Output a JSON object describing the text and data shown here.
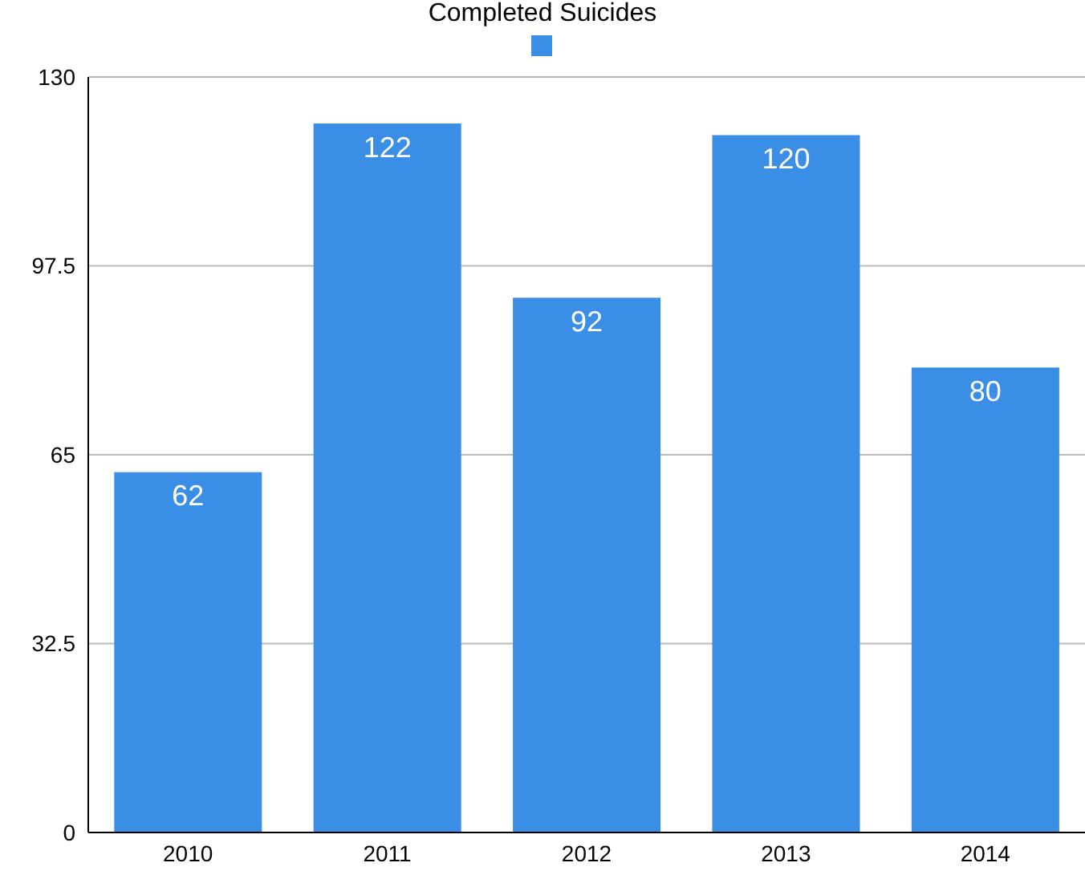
{
  "chart_data": {
    "type": "bar",
    "categories": [
      "2010",
      "2011",
      "2012",
      "2013",
      "2014"
    ],
    "series": [
      {
        "name": "Completed Suicides",
        "color": "#3a8ee6",
        "values": [
          62,
          122,
          92,
          120,
          80
        ]
      }
    ],
    "ylim": [
      0,
      130
    ],
    "yticks": [
      0,
      32.5,
      65,
      97.5,
      130
    ],
    "grid": "y",
    "legend": "top",
    "data_labels": true
  }
}
